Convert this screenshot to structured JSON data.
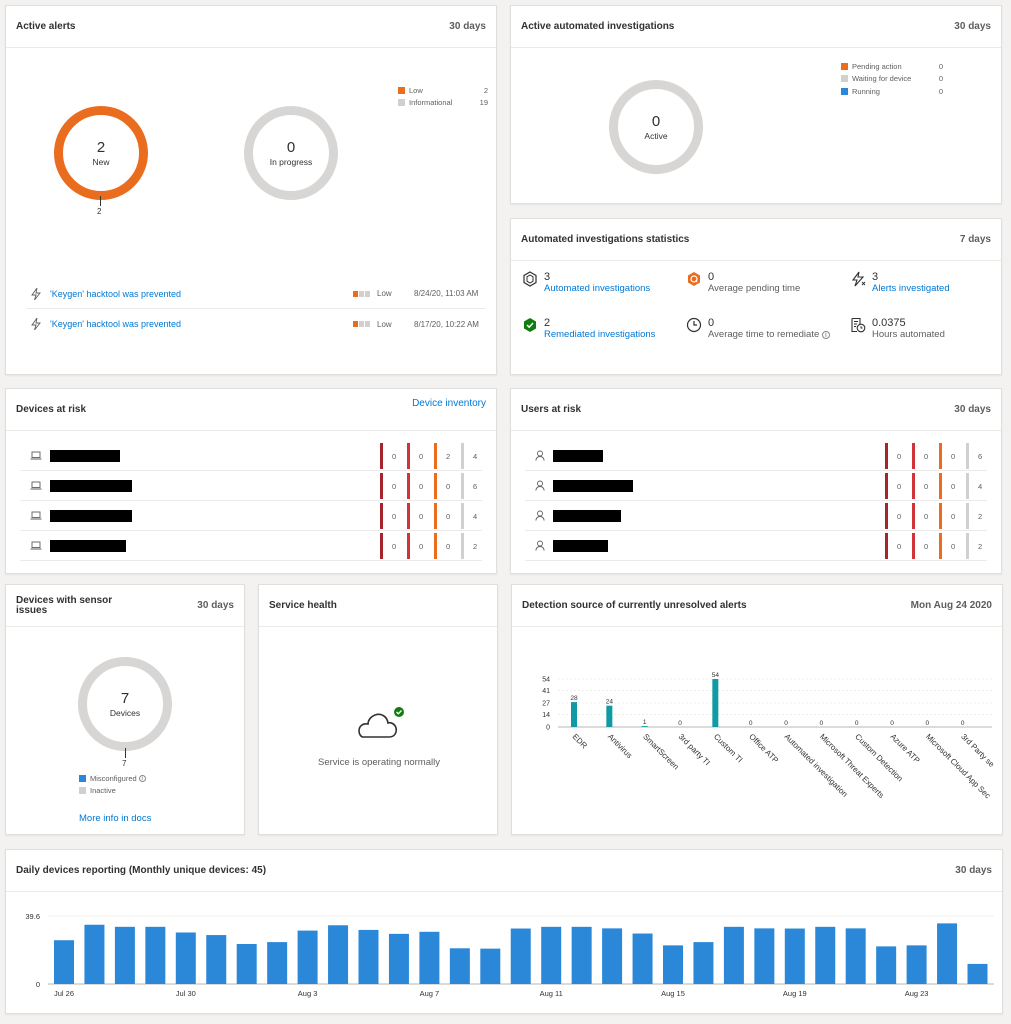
{
  "active_alerts": {
    "title": "Active alerts",
    "range": "30 days",
    "new_count": "2",
    "new_label": "New",
    "new_tick": "2",
    "progress_count": "0",
    "progress_label": "In progress",
    "legend": [
      {
        "label": "Low",
        "value": "2",
        "color": "#ea6d1f"
      },
      {
        "label": "Informational",
        "value": "19",
        "color": "#d2d0ce"
      }
    ],
    "alerts": [
      {
        "title": "'Keygen' hacktool was prevented",
        "severity": "Low",
        "time": "8/24/20, 11:03 AM"
      },
      {
        "title": "'Keygen' hacktool was prevented",
        "severity": "Low",
        "time": "8/17/20, 10:22 AM"
      }
    ]
  },
  "auto_inv": {
    "title": "Active automated investigations",
    "range": "30 days",
    "count": "0",
    "label": "Active",
    "legend": [
      {
        "label": "Pending action",
        "value": "0",
        "color": "#ea6d1f"
      },
      {
        "label": "Waiting for device",
        "value": "0",
        "color": "#d2d0ce"
      },
      {
        "label": "Running",
        "value": "0",
        "color": "#2b88d8"
      }
    ]
  },
  "inv_stats": {
    "title": "Automated investigations statistics",
    "range": "7 days",
    "items": [
      {
        "value": "3",
        "label": "Automated investigations"
      },
      {
        "value": "0",
        "label": "Average pending time"
      },
      {
        "value": "3",
        "label": "Alerts investigated"
      },
      {
        "value": "2",
        "label": "Remediated investigations"
      },
      {
        "value": "0",
        "label": "Average time to remediate"
      },
      {
        "value": "0.0375",
        "label": "Hours automated"
      }
    ]
  },
  "devices_risk": {
    "title": "Devices at risk",
    "link": "Device inventory",
    "rows": [
      {
        "sev": [
          "0",
          "0",
          "2",
          "4"
        ]
      },
      {
        "sev": [
          "0",
          "0",
          "0",
          "6"
        ]
      },
      {
        "sev": [
          "0",
          "0",
          "0",
          "4"
        ]
      },
      {
        "sev": [
          "0",
          "0",
          "0",
          "2"
        ]
      }
    ]
  },
  "users_risk": {
    "title": "Users at risk",
    "range": "30 days",
    "rows": [
      {
        "sev": [
          "0",
          "0",
          "0",
          "6"
        ]
      },
      {
        "sev": [
          "0",
          "0",
          "0",
          "4"
        ]
      },
      {
        "sev": [
          "0",
          "0",
          "0",
          "2"
        ]
      },
      {
        "sev": [
          "0",
          "0",
          "0",
          "2"
        ]
      }
    ]
  },
  "sev_colors": [
    "#a4262c",
    "#d13438",
    "#ea6d1f",
    "#d2d0ce"
  ],
  "sensor": {
    "title_line1": "Devices with sensor",
    "title_line2": "issues",
    "range": "30 days",
    "count": "7",
    "label": "Devices",
    "tick": "7",
    "legend": [
      {
        "label": "Misconfigured",
        "color": "#2b88d8"
      },
      {
        "label": "Inactive",
        "color": "#d2d0ce"
      }
    ],
    "link": "More info in docs"
  },
  "health": {
    "title": "Service health",
    "status": "Service is operating normally"
  },
  "detection": {
    "title": "Detection source of currently unresolved alerts",
    "date": "Mon Aug 24 2020"
  },
  "daily": {
    "title": "Daily devices reporting (Monthly unique devices: 45)",
    "range": "30 days"
  },
  "chart_data": [
    {
      "type": "bar",
      "categories": [
        "EDR",
        "Antivirus",
        "SmartScreen",
        "3rd party TI",
        "Custom TI",
        "Office ATP",
        "Automated investigation",
        "Microsoft Threat Experts",
        "Custom Detection",
        "Azure ATP",
        "Microsoft Cloud App Sec",
        "3rd Party se"
      ],
      "values": [
        28,
        24,
        1,
        0,
        54,
        0,
        0,
        0,
        0,
        0,
        0,
        0
      ],
      "yticks": [
        0,
        14,
        27,
        41,
        54
      ],
      "ylim": [
        0,
        54
      ],
      "color": "#0f9aa5"
    },
    {
      "type": "bar",
      "categories": [
        "Jul 26",
        "Jul 27",
        "Jul 28",
        "Jul 29",
        "Jul 30",
        "Jul 31",
        "Aug 1",
        "Aug 2",
        "Aug 3",
        "Aug 4",
        "Aug 5",
        "Aug 6",
        "Aug 7",
        "Aug 8",
        "Aug 9",
        "Aug 10",
        "Aug 11",
        "Aug 12",
        "Aug 13",
        "Aug 14",
        "Aug 15",
        "Aug 16",
        "Aug 17",
        "Aug 18",
        "Aug 19",
        "Aug 20",
        "Aug 21",
        "Aug 22",
        "Aug 23",
        "Aug 24"
      ],
      "values": [
        25.5,
        34.5,
        33.3,
        33.3,
        30,
        28.5,
        23.3,
        24.4,
        31.1,
        34.2,
        31.5,
        29.2,
        30.4,
        20.8,
        20.6,
        32.3,
        33.3,
        33.3,
        32.4,
        29.4,
        22.5,
        24.4,
        33.3,
        32.4,
        32.3,
        33.3,
        32.4,
        21.9,
        22.5,
        35.3
      ],
      "extra_value": 11.7,
      "xticks": [
        "Jul 26",
        "Jul 30",
        "Aug 3",
        "Aug 7",
        "Aug 11",
        "Aug 15",
        "Aug 19",
        "Aug 23"
      ],
      "yticks": [
        "0",
        "39.6"
      ],
      "ylim": [
        0,
        39.6
      ],
      "color": "#2b88d8"
    }
  ]
}
